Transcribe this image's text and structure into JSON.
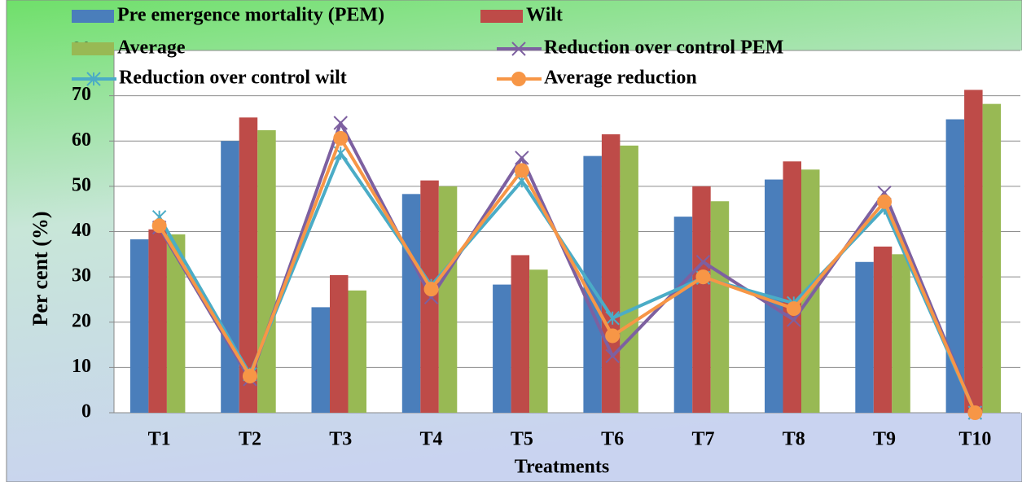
{
  "chart_data": {
    "type": "bar-line",
    "x_label": "Treatments",
    "y_label": "Per cent (%)",
    "categories": [
      "T1",
      "T2",
      "T3",
      "T4",
      "T5",
      "T6",
      "T7",
      "T8",
      "T9",
      "T10"
    ],
    "ylim": [
      0,
      80
    ],
    "yticks": [
      0,
      10,
      20,
      30,
      40,
      50,
      60,
      70,
      80
    ],
    "grid": true,
    "series": [
      {
        "name": "Pre emergence mortality (PEM)",
        "kind": "bar",
        "color": "#4a7ebb",
        "values": [
          38.3,
          60,
          23.3,
          48.3,
          28.3,
          56.7,
          43.3,
          51.5,
          33.3,
          64.8
        ]
      },
      {
        "name": "Wilt",
        "kind": "bar",
        "color": "#be4b48",
        "values": [
          40.5,
          65.2,
          30.4,
          51.3,
          34.8,
          61.5,
          50,
          55.5,
          36.7,
          71.3
        ]
      },
      {
        "name": "Average",
        "kind": "bar",
        "color": "#98b954",
        "values": [
          39.4,
          62.4,
          27,
          50,
          31.6,
          59,
          46.7,
          53.7,
          35,
          68.2
        ]
      },
      {
        "name": "Reduction over control PEM",
        "kind": "line",
        "marker": "x",
        "color": "#7d60a0",
        "values": [
          40.9,
          7.4,
          64,
          25.5,
          56.3,
          12.5,
          33.3,
          20.5,
          48.6,
          0
        ]
      },
      {
        "name": "Reduction over control wilt",
        "kind": "line",
        "marker": "star",
        "color": "#4bacc6",
        "values": [
          43.2,
          8.5,
          57.3,
          28.1,
          51.2,
          20.9,
          29.8,
          24.2,
          45.2,
          0
        ]
      },
      {
        "name": "Average reduction",
        "kind": "line",
        "marker": "circle",
        "color": "#f79646",
        "values": [
          41.3,
          8.1,
          60.6,
          27.3,
          53.5,
          17,
          30,
          23,
          46.6,
          0
        ]
      }
    ]
  }
}
